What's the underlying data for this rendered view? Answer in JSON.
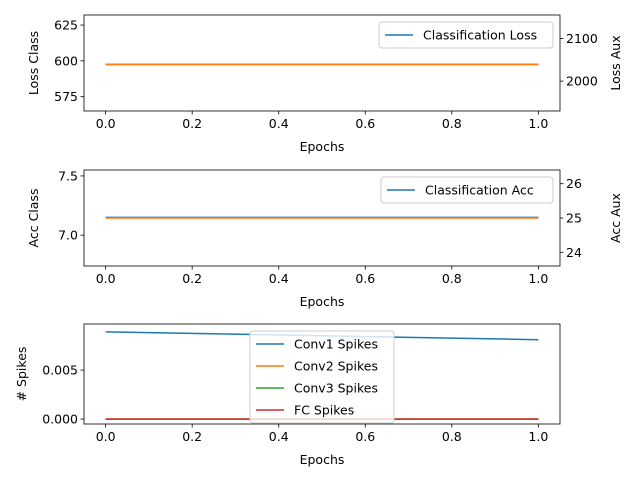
{
  "colors": {
    "blue": "#1f77b4",
    "orange": "#ff7f0e",
    "green": "#2ca02c",
    "red": "#d62728",
    "axis": "#000000",
    "legend_border": "#cccccc"
  },
  "chart_data": [
    {
      "type": "line",
      "xlabel": "Epochs",
      "ylabel": "Loss Class",
      "ylabel_right": "Loss Aux",
      "xlim": [
        -0.05,
        1.05
      ],
      "ylim": [
        565,
        632
      ],
      "ylim_right": [
        1930,
        2155
      ],
      "xticks": [
        "0.0",
        "0.2",
        "0.4",
        "0.6",
        "0.8",
        "1.0"
      ],
      "yticks": [
        "575",
        "600",
        "625"
      ],
      "yticks_right": [
        "2000",
        "2100"
      ],
      "legend": "top-right",
      "series": [
        {
          "name": "Classification Loss",
          "axis": "left",
          "color": "#1f77b4",
          "x": [
            0,
            1
          ],
          "y": [
            597.5,
            597.5
          ]
        },
        {
          "name": "",
          "axis": "right",
          "color": "#ff7f0e",
          "x": [
            0,
            1
          ],
          "y": [
            2039,
            2039
          ]
        }
      ]
    },
    {
      "type": "line",
      "xlabel": "Epochs",
      "ylabel": "Acc Class",
      "ylabel_right": "Acc Aux",
      "xlim": [
        -0.05,
        1.05
      ],
      "ylim": [
        6.74,
        7.55
      ],
      "ylim_right": [
        23.6,
        26.4
      ],
      "xticks": [
        "0.0",
        "0.2",
        "0.4",
        "0.6",
        "0.8",
        "1.0"
      ],
      "yticks": [
        "7.0",
        "7.5"
      ],
      "yticks_right": [
        "24",
        "25",
        "26"
      ],
      "legend": "top-right",
      "series": [
        {
          "name": "Classification Acc",
          "axis": "left",
          "color": "#1f77b4",
          "x": [
            0,
            1
          ],
          "y": [
            7.15,
            7.15
          ]
        },
        {
          "name": "",
          "axis": "right",
          "color": "#ff7f0e",
          "x": [
            0,
            1
          ],
          "y": [
            25.0,
            25.0
          ]
        }
      ]
    },
    {
      "type": "line",
      "xlabel": "Epochs",
      "ylabel": "# Spikes",
      "xlim": [
        -0.05,
        1.05
      ],
      "ylim": [
        -0.0005,
        0.0097
      ],
      "xticks": [
        "0.0",
        "0.2",
        "0.4",
        "0.6",
        "0.8",
        "1.0"
      ],
      "yticks": [
        "0.000",
        "0.005"
      ],
      "legend": "upper center",
      "series": [
        {
          "name": "Conv1 Spikes",
          "axis": "left",
          "color": "#1f77b4",
          "x": [
            0,
            1
          ],
          "y": [
            0.0089,
            0.0081
          ]
        },
        {
          "name": "Conv2 Spikes",
          "axis": "left",
          "color": "#ff7f0e",
          "x": [
            0,
            1
          ],
          "y": [
            0.0,
            0.0
          ]
        },
        {
          "name": "Conv3 Spikes",
          "axis": "left",
          "color": "#2ca02c",
          "x": [
            0,
            1
          ],
          "y": [
            0.0,
            0.0
          ]
        },
        {
          "name": "FC Spikes",
          "axis": "left",
          "color": "#d62728",
          "x": [
            0,
            1
          ],
          "y": [
            0.0,
            0.0
          ]
        }
      ]
    }
  ]
}
